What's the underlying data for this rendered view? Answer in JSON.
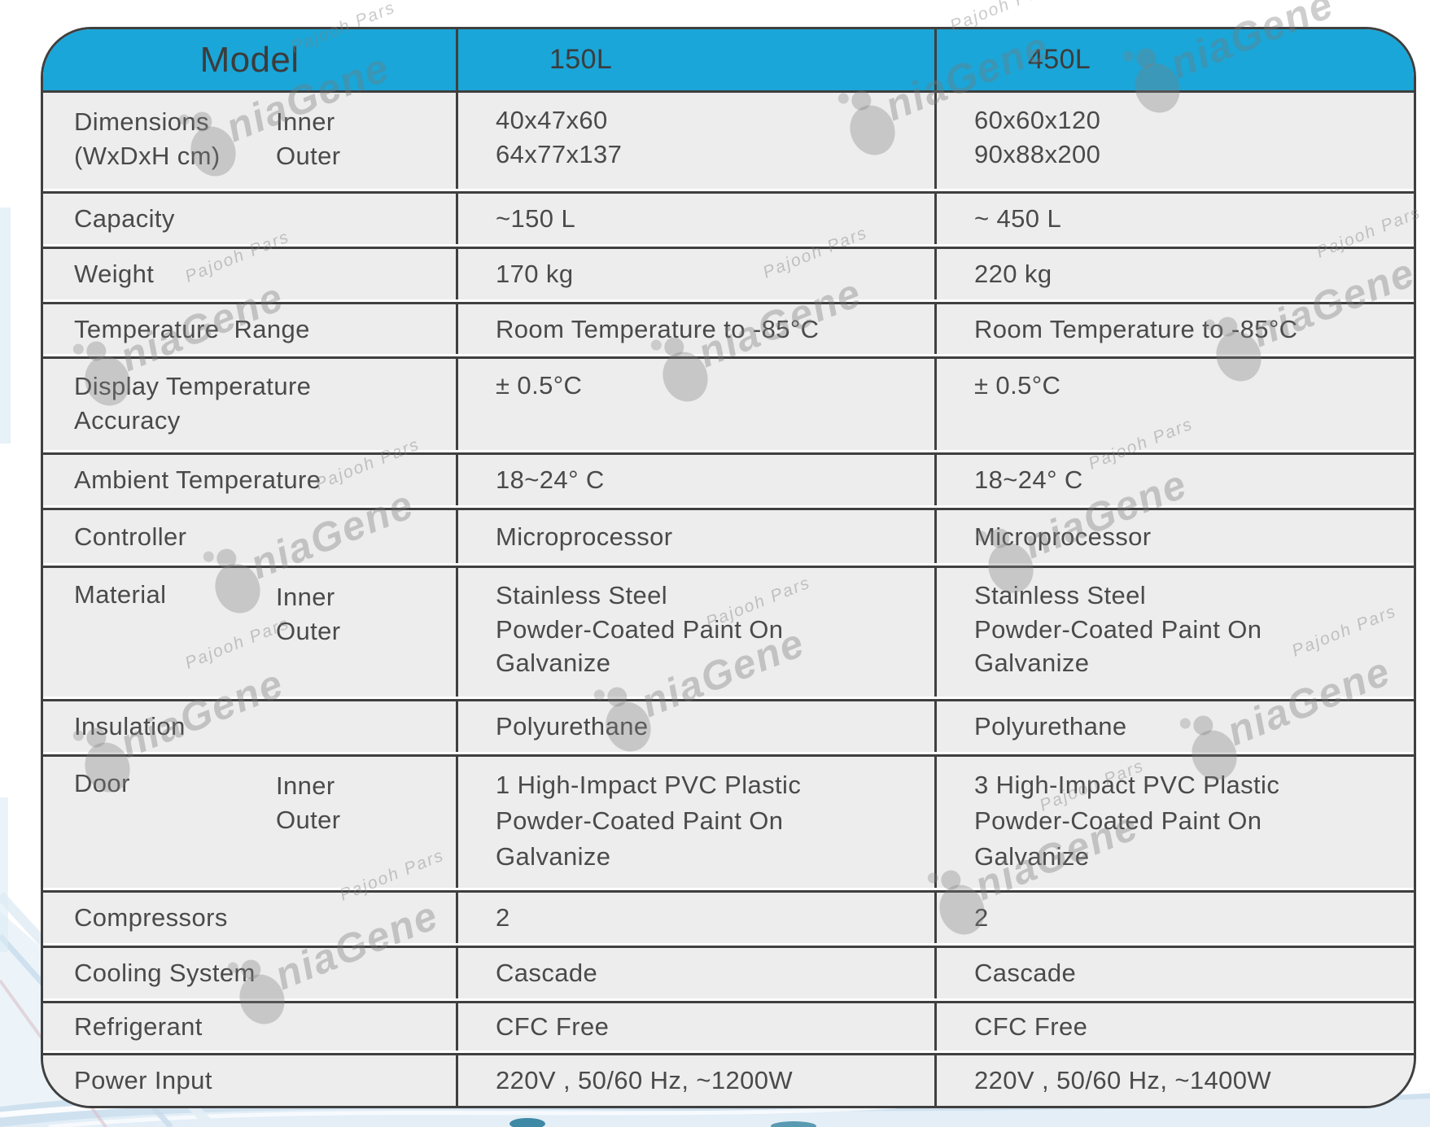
{
  "watermark": {
    "brand": "niaGene",
    "subtext": "Pajooh Pars"
  },
  "colors": {
    "header_bg": "#1aa6d8",
    "row_bg": "#ededee",
    "border": "#3f3f3f",
    "text": "#4a4a4a",
    "wave_blue": "#cfe1ef",
    "wave_light": "#e3eef7"
  },
  "table": {
    "header": {
      "model": "Model",
      "col_150": "150L",
      "col_450": "450L"
    },
    "rows": {
      "dimensions": {
        "label1": "Dimensions",
        "label2": "(WxDxH cm)",
        "sub1": "Inner",
        "sub2": "Outer",
        "m150_1": "40x47x60",
        "m150_2": "64x77x137",
        "m450_1": "60x60x120",
        "m450_2": "90x88x200"
      },
      "capacity": {
        "label": "Capacity",
        "m150": "~150 L",
        "m450": "~ 450 L"
      },
      "weight": {
        "label": "Weight",
        "m150": "170 kg",
        "m450": "220 kg"
      },
      "temp_range": {
        "label": "Temperature Range",
        "m150": "Room Temperature to -85°C",
        "m450": "Room Temperature to -85°C"
      },
      "display_accuracy": {
        "label1": "Display Temperature",
        "label2": "Accuracy",
        "m150": "± 0.5°C",
        "m450": "± 0.5°C"
      },
      "ambient": {
        "label": "Ambient Temperature",
        "m150": "18~24° C",
        "m450": "18~24° C"
      },
      "controller": {
        "label": "Controller",
        "m150": "Microprocessor",
        "m450": "Microprocessor"
      },
      "material": {
        "label": "Material",
        "sub1": "Inner",
        "sub2": "Outer",
        "m150_1": "Stainless Steel",
        "m150_2": "Powder-Coated Paint On",
        "m150_3": "Galvanize",
        "m450_1": "Stainless Steel",
        "m450_2": "Powder-Coated Paint On",
        "m450_3": "Galvanize"
      },
      "insulation": {
        "label": "Insulation",
        "m150": "Polyurethane",
        "m450": "Polyurethane"
      },
      "door": {
        "label": "Door",
        "sub1": "Inner",
        "sub2": "Outer",
        "m150_1": "1 High-Impact PVC Plastic",
        "m150_2": "Powder-Coated Paint On",
        "m150_3": "Galvanize",
        "m450_1": "3 High-Impact PVC Plastic",
        "m450_2": "Powder-Coated Paint On",
        "m450_3": "Galvanize"
      },
      "compressors": {
        "label": "Compressors",
        "m150": "2",
        "m450": "2"
      },
      "cooling": {
        "label": "Cooling System",
        "m150": "Cascade",
        "m450": "Cascade"
      },
      "refrigerant": {
        "label": "Refrigerant",
        "m150": "CFC Free",
        "m450": "CFC Free"
      },
      "power": {
        "label": "Power Input",
        "m150": "220V , 50/60 Hz, ~1200W",
        "m450": "220V , 50/60 Hz, ~1400W"
      }
    }
  }
}
